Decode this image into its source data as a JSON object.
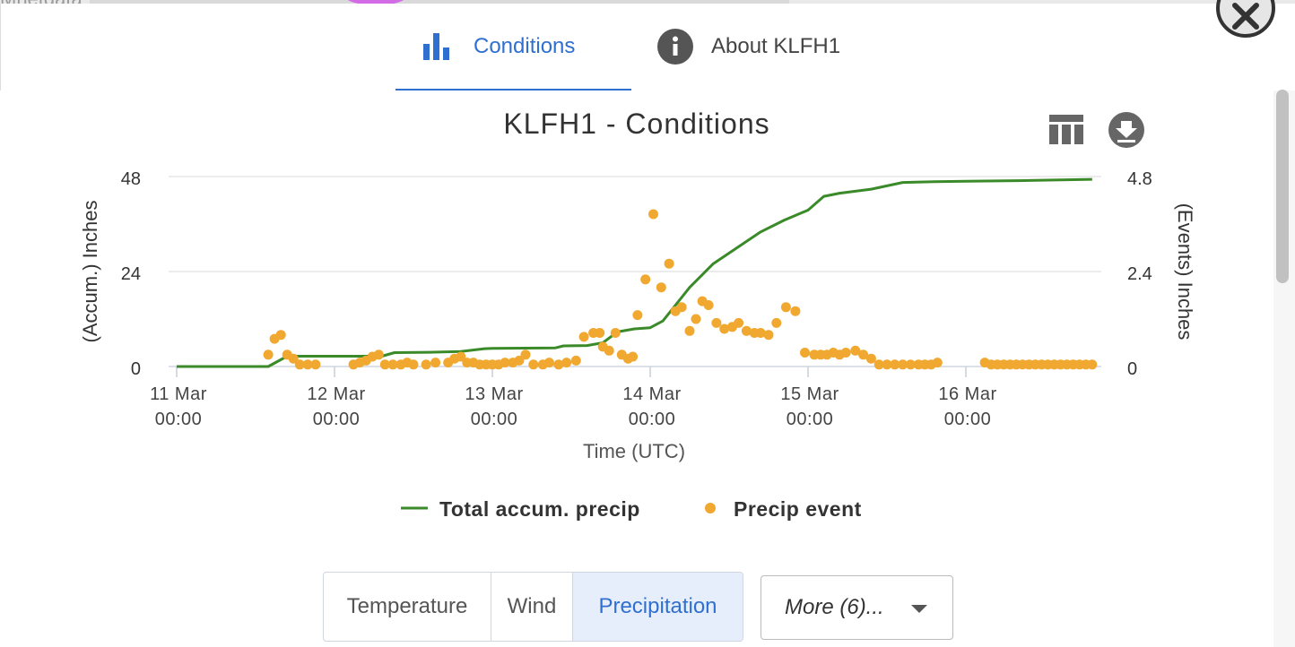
{
  "background": {
    "text": "Mnetdata"
  },
  "tabs": [
    {
      "label": "Conditions",
      "icon": "bar-chart-icon",
      "active": true
    },
    {
      "label": "About KLFH1",
      "icon": "info-icon",
      "active": false
    }
  ],
  "toolbar": {
    "table_icon": "table-icon",
    "download_icon": "download-icon",
    "close_icon": "close-icon"
  },
  "colors": {
    "accent": "#2f6fd0",
    "accum_line": "#3b8a2a",
    "event_points": "#f0a830",
    "grid": "#e6e6e6"
  },
  "chart_data": {
    "type": "line",
    "title": "KLFH1 - Conditions",
    "xlabel": "Time (UTC)",
    "ylabel_left": "(Accum.) Inches",
    "ylabel_right": "(Events) Inches",
    "x_ticks": [
      {
        "day": 0,
        "line1": "11 Mar",
        "line2": "00:00"
      },
      {
        "day": 1,
        "line1": "12 Mar",
        "line2": "00:00"
      },
      {
        "day": 2,
        "line1": "13 Mar",
        "line2": "00:00"
      },
      {
        "day": 3,
        "line1": "14 Mar",
        "line2": "00:00"
      },
      {
        "day": 4,
        "line1": "15 Mar",
        "line2": "00:00"
      },
      {
        "day": 5,
        "line1": "16 Mar",
        "line2": "00:00"
      }
    ],
    "x_unit": "days since 11 Mar 00:00 UTC",
    "xlim": [
      0,
      5.9
    ],
    "y_left": {
      "ticks": [
        "0",
        "24",
        "48"
      ],
      "lim": [
        0,
        48
      ]
    },
    "y_right": {
      "ticks": [
        "0",
        "2.4",
        "4.8"
      ],
      "lim": [
        0,
        4.8
      ]
    },
    "grid": true,
    "legend_position": "bottom-center",
    "series": [
      {
        "name": "Total accum. precip",
        "kind": "line",
        "axis": "left",
        "color": "#3b8a2a",
        "x": [
          0,
          0.58,
          0.7,
          1.3,
          1.38,
          1.6,
          1.8,
          1.95,
          2.0,
          2.4,
          2.45,
          2.6,
          2.7,
          2.75,
          2.8,
          2.9,
          3.0,
          3.08,
          3.15,
          3.25,
          3.4,
          3.55,
          3.7,
          3.85,
          4.0,
          4.1,
          4.2,
          4.4,
          4.6,
          4.8,
          5.0,
          5.4,
          5.8
        ],
        "y": [
          0,
          0,
          2.6,
          2.6,
          3.5,
          3.6,
          3.8,
          4.5,
          4.6,
          4.7,
          5.2,
          5.3,
          6.0,
          7.5,
          8.8,
          9.5,
          9.8,
          11.5,
          15.0,
          20.0,
          26.0,
          30.0,
          34.0,
          37.0,
          39.5,
          43.0,
          43.8,
          44.8,
          46.5,
          46.7,
          46.8,
          47.0,
          47.3
        ]
      },
      {
        "name": "Precip event",
        "kind": "scatter",
        "axis": "right",
        "color": "#f0a830",
        "x": [
          0.58,
          0.62,
          0.66,
          0.7,
          0.74,
          0.78,
          0.83,
          0.88,
          1.12,
          1.16,
          1.2,
          1.24,
          1.28,
          1.32,
          1.37,
          1.42,
          1.46,
          1.5,
          1.58,
          1.64,
          1.72,
          1.76,
          1.8,
          1.84,
          1.88,
          1.92,
          1.96,
          2.0,
          2.04,
          2.08,
          2.13,
          2.17,
          2.21,
          2.26,
          2.32,
          2.36,
          2.42,
          2.47,
          2.53,
          2.58,
          2.64,
          2.68,
          2.7,
          2.74,
          2.78,
          2.82,
          2.86,
          2.89,
          2.92,
          2.97,
          3.02,
          3.07,
          3.12,
          3.16,
          3.2,
          3.25,
          3.29,
          3.33,
          3.37,
          3.42,
          3.47,
          3.52,
          3.56,
          3.61,
          3.66,
          3.7,
          3.75,
          3.8,
          3.86,
          3.92,
          3.98,
          4.04,
          4.08,
          4.12,
          4.16,
          4.2,
          4.24,
          4.3,
          4.35,
          4.4,
          4.45,
          4.5,
          4.55,
          4.6,
          4.65,
          4.7,
          4.74,
          4.78,
          4.82,
          5.12,
          5.16,
          5.2,
          5.24,
          5.28,
          5.32,
          5.36,
          5.4,
          5.44,
          5.48,
          5.52,
          5.56,
          5.6,
          5.64,
          5.68,
          5.72,
          5.76,
          5.8
        ],
        "y": [
          0.3,
          0.7,
          0.8,
          0.3,
          0.2,
          0.05,
          0.05,
          0.05,
          0.05,
          0.1,
          0.15,
          0.25,
          0.3,
          0.05,
          0.05,
          0.05,
          0.1,
          0.05,
          0.05,
          0.1,
          0.1,
          0.2,
          0.25,
          0.1,
          0.1,
          0.05,
          0.05,
          0.05,
          0.05,
          0.1,
          0.1,
          0.15,
          0.3,
          0.05,
          0.05,
          0.1,
          0.05,
          0.1,
          0.15,
          0.75,
          0.85,
          0.85,
          0.5,
          0.4,
          0.85,
          0.3,
          0.2,
          0.25,
          1.3,
          2.2,
          3.85,
          2.0,
          2.6,
          1.4,
          1.5,
          0.9,
          1.2,
          1.65,
          1.55,
          1.1,
          0.95,
          1.0,
          1.1,
          0.9,
          0.85,
          0.85,
          0.8,
          1.1,
          1.5,
          1.4,
          0.35,
          0.3,
          0.3,
          0.3,
          0.35,
          0.3,
          0.35,
          0.4,
          0.3,
          0.2,
          0.05,
          0.05,
          0.05,
          0.05,
          0.05,
          0.05,
          0.05,
          0.05,
          0.1,
          0.1,
          0.05,
          0.05,
          0.05,
          0.05,
          0.05,
          0.05,
          0.05,
          0.05,
          0.05,
          0.05,
          0.05,
          0.05,
          0.05,
          0.05,
          0.05,
          0.05,
          0.05
        ]
      }
    ]
  },
  "buttons": {
    "temperature": "Temperature",
    "wind": "Wind",
    "precipitation": "Precipitation",
    "more": "More (6)..."
  }
}
